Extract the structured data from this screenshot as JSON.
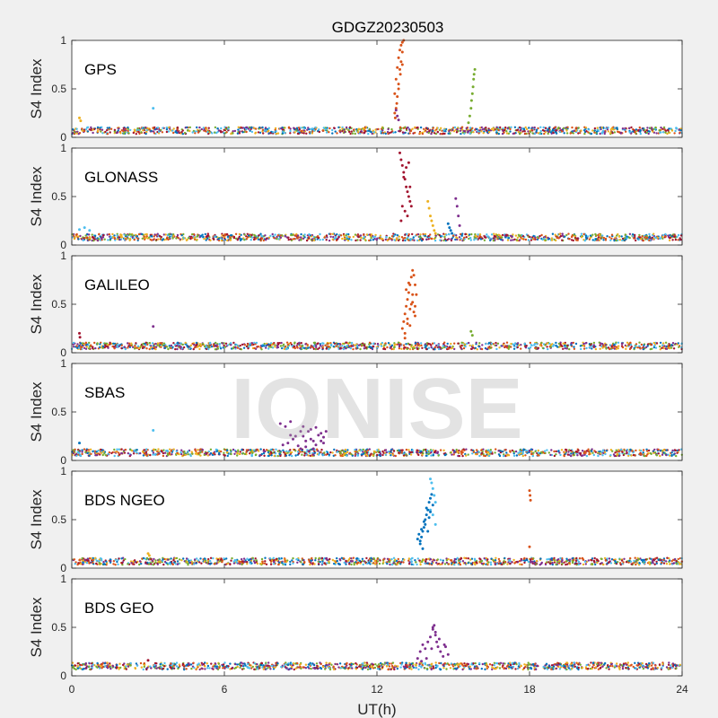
{
  "figure": {
    "background": "#f0f0f0",
    "axes_background": "#ffffff",
    "axis_color": "#262626",
    "watermark": "IONISE"
  },
  "chart_data": {
    "type": "scatter",
    "title": "GDGZ20230503",
    "xlabel": "UT(h)",
    "ylabel": "S4 Index",
    "xlim": [
      0,
      24
    ],
    "ylim": [
      0,
      1
    ],
    "xticks": [
      0,
      6,
      12,
      18,
      24
    ],
    "yticks": [
      0,
      0.5,
      1
    ],
    "colors": [
      "#0072BD",
      "#D95319",
      "#EDB120",
      "#7E2F8E",
      "#77AC30",
      "#4DBEEE",
      "#A2142F"
    ],
    "panels": [
      {
        "label": "GPS",
        "baseline": 0.07,
        "series": [
          {
            "color": "#D95319",
            "x": [
              12.7,
              12.75,
              12.8,
              12.85,
              12.9,
              12.95,
              13.0,
              13.05,
              13.0,
              12.95,
              12.9,
              12.85,
              12.8,
              12.75,
              12.7,
              12.72,
              12.78,
              12.85,
              12.92,
              13.0
            ],
            "y": [
              0.45,
              0.6,
              0.72,
              0.82,
              0.9,
              0.95,
              0.98,
              1.0,
              0.88,
              0.78,
              0.7,
              0.55,
              0.42,
              0.3,
              0.25,
              0.2,
              0.35,
              0.5,
              0.65,
              0.75
            ]
          },
          {
            "color": "#7E2F8E",
            "x": [
              12.75,
              12.8,
              12.85
            ],
            "y": [
              0.28,
              0.22,
              0.18
            ]
          },
          {
            "color": "#77AC30",
            "x": [
              15.6,
              15.65,
              15.7,
              15.72,
              15.75,
              15.78,
              15.8,
              15.82,
              15.85
            ],
            "y": [
              0.15,
              0.22,
              0.3,
              0.38,
              0.45,
              0.52,
              0.6,
              0.65,
              0.7
            ]
          },
          {
            "color": "#4DBEEE",
            "x": [
              3.2
            ],
            "y": [
              0.3
            ]
          },
          {
            "color": "#EDB120",
            "x": [
              0.3,
              0.35
            ],
            "y": [
              0.2,
              0.17
            ]
          }
        ]
      },
      {
        "label": "GLONASS",
        "baseline": 0.08,
        "series": [
          {
            "color": "#A2142F",
            "x": [
              12.9,
              12.95,
              13.0,
              13.05,
              13.1,
              13.15,
              13.2,
              13.25,
              13.3,
              13.0,
              13.1,
              13.2,
              12.95,
              13.05,
              13.15,
              13.25,
              13.3,
              13.35
            ],
            "y": [
              0.95,
              0.88,
              0.82,
              0.75,
              0.68,
              0.6,
              0.55,
              0.5,
              0.45,
              0.4,
              0.35,
              0.3,
              0.25,
              0.7,
              0.8,
              0.85,
              0.6,
              0.4
            ]
          },
          {
            "color": "#EDB120",
            "x": [
              14.0,
              14.05,
              14.1,
              14.15,
              14.2,
              14.25,
              14.3
            ],
            "y": [
              0.45,
              0.38,
              0.3,
              0.25,
              0.2,
              0.15,
              0.12
            ]
          },
          {
            "color": "#7E2F8E",
            "x": [
              15.1,
              15.15,
              15.2,
              15.25
            ],
            "y": [
              0.48,
              0.4,
              0.3,
              0.2
            ]
          },
          {
            "color": "#0072BD",
            "x": [
              14.8,
              14.85,
              14.9,
              14.95
            ],
            "y": [
              0.22,
              0.18,
              0.15,
              0.12
            ]
          },
          {
            "color": "#4DBEEE",
            "x": [
              0.3,
              0.5,
              0.7
            ],
            "y": [
              0.16,
              0.18,
              0.15
            ]
          }
        ]
      },
      {
        "label": "GALILEO",
        "baseline": 0.07,
        "series": [
          {
            "color": "#D95319",
            "x": [
              13.0,
              13.05,
              13.1,
              13.15,
              13.2,
              13.25,
              13.3,
              13.35,
              13.4,
              13.45,
              13.5,
              13.55,
              13.1,
              13.2,
              13.3,
              13.4,
              13.5,
              13.15,
              13.25,
              13.35,
              13.45,
              13.2,
              13.3,
              13.4,
              13.1,
              13.5
            ],
            "y": [
              0.25,
              0.32,
              0.4,
              0.48,
              0.55,
              0.62,
              0.7,
              0.78,
              0.85,
              0.8,
              0.7,
              0.6,
              0.2,
              0.3,
              0.45,
              0.52,
              0.38,
              0.65,
              0.72,
              0.5,
              0.42,
              0.35,
              0.28,
              0.6,
              0.15,
              0.48
            ]
          },
          {
            "color": "#A2142F",
            "x": [
              0.3,
              0.32
            ],
            "y": [
              0.2,
              0.16
            ]
          },
          {
            "color": "#7E2F8E",
            "x": [
              3.2
            ],
            "y": [
              0.27
            ]
          },
          {
            "color": "#77AC30",
            "x": [
              15.7,
              15.75
            ],
            "y": [
              0.22,
              0.18
            ]
          }
        ]
      },
      {
        "label": "SBAS",
        "baseline": 0.08,
        "series": [
          {
            "color": "#7E2F8E",
            "x": [
              8.2,
              8.4,
              8.6,
              8.8,
              9.0,
              9.2,
              9.4,
              9.6,
              9.8,
              10.0,
              8.5,
              8.7,
              8.9,
              9.1,
              9.3,
              9.5,
              9.7,
              9.9,
              9.0,
              9.2,
              9.4,
              9.6,
              9.8,
              8.3,
              8.6,
              9.1,
              9.5,
              9.9
            ],
            "y": [
              0.38,
              0.35,
              0.4,
              0.25,
              0.3,
              0.2,
              0.32,
              0.34,
              0.28,
              0.3,
              0.18,
              0.22,
              0.15,
              0.25,
              0.3,
              0.2,
              0.26,
              0.18,
              0.12,
              0.14,
              0.22,
              0.16,
              0.2,
              0.16,
              0.26,
              0.35,
              0.12,
              0.24
            ]
          },
          {
            "color": "#4DBEEE",
            "x": [
              3.2
            ],
            "y": [
              0.31
            ]
          },
          {
            "color": "#0072BD",
            "x": [
              0.3
            ],
            "y": [
              0.18
            ]
          }
        ]
      },
      {
        "label": "BDS NGEO",
        "baseline": 0.07,
        "series": [
          {
            "color": "#4DBEEE",
            "x": [
              14.1,
              14.15,
              14.2,
              14.25,
              14.3,
              14.1,
              14.2,
              14.3
            ],
            "y": [
              0.92,
              0.88,
              0.82,
              0.75,
              0.68,
              0.6,
              0.55,
              0.45
            ]
          },
          {
            "color": "#0072BD",
            "x": [
              13.6,
              13.65,
              13.7,
              13.75,
              13.8,
              13.85,
              13.9,
              13.95,
              14.0,
              14.05,
              14.1,
              14.15,
              14.2,
              13.7,
              13.8,
              13.9,
              14.0,
              14.1,
              13.75,
              13.85,
              13.95,
              14.05
            ],
            "y": [
              0.3,
              0.35,
              0.28,
              0.32,
              0.38,
              0.42,
              0.5,
              0.55,
              0.6,
              0.68,
              0.72,
              0.76,
              0.65,
              0.25,
              0.2,
              0.45,
              0.38,
              0.58,
              0.4,
              0.48,
              0.62,
              0.52
            ]
          },
          {
            "color": "#D95319",
            "x": [
              18.0,
              18.02,
              18.04
            ],
            "y": [
              0.8,
              0.75,
              0.7
            ]
          },
          {
            "color": "#EDB120",
            "x": [
              3.0,
              3.05
            ],
            "y": [
              0.15,
              0.13
            ]
          },
          {
            "color": "#D95319",
            "x": [
              18.0
            ],
            "y": [
              0.22
            ]
          }
        ]
      },
      {
        "label": "BDS GEO",
        "baseline": 0.1,
        "series": [
          {
            "color": "#7E2F8E",
            "x": [
              13.6,
              13.7,
              13.8,
              13.9,
              14.0,
              14.1,
              14.2,
              14.25,
              14.3,
              14.35,
              14.4,
              14.5,
              14.6,
              14.7,
              14.8,
              13.75,
              13.95,
              14.15,
              14.45,
              14.65,
              14.3,
              14.2
            ],
            "y": [
              0.18,
              0.25,
              0.32,
              0.28,
              0.35,
              0.4,
              0.5,
              0.52,
              0.45,
              0.35,
              0.3,
              0.25,
              0.2,
              0.3,
              0.22,
              0.15,
              0.18,
              0.28,
              0.38,
              0.32,
              0.42,
              0.48
            ]
          },
          {
            "color": "#A2142F",
            "x": [
              3.0
            ],
            "y": [
              0.16
            ]
          }
        ]
      }
    ]
  }
}
